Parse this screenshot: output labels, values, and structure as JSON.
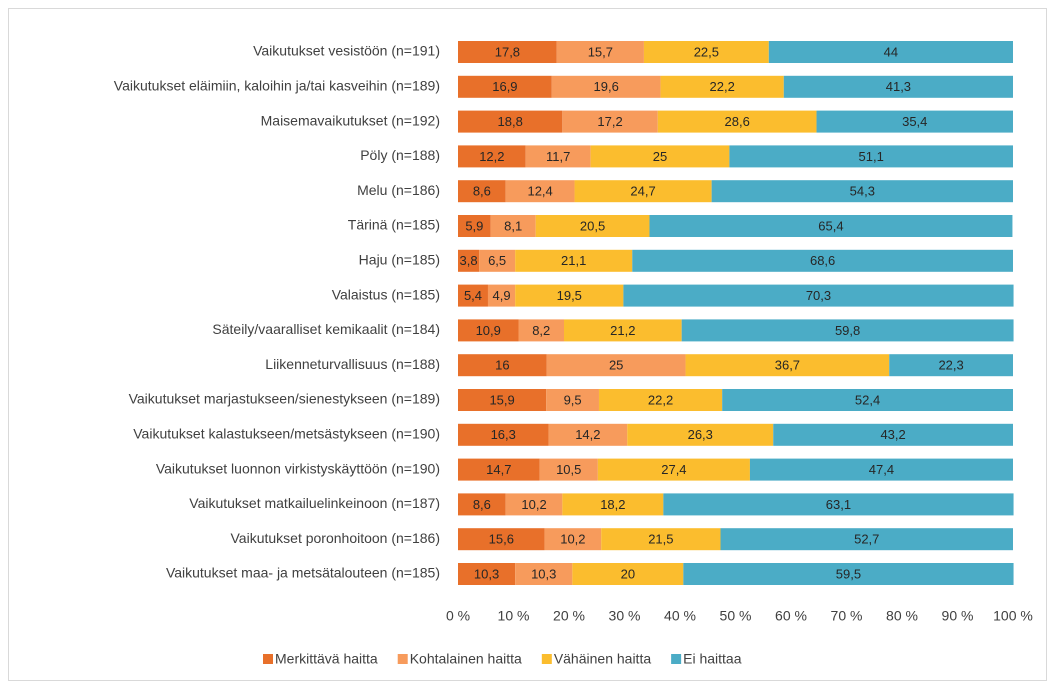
{
  "chart_data": {
    "type": "stacked-barh",
    "categories": [
      "Vaikutukset vesistöön (n=191)",
      "Vaikutukset eläimiin, kaloihin ja/tai kasveihin (n=189)",
      "Maisemavaikutukset (n=192)",
      "Pöly (n=188)",
      "Melu (n=186)",
      "Tärinä (n=185)",
      "Haju (n=185)",
      "Valaistus (n=185)",
      "Säteily/vaaralliset kemikaalit (n=184)",
      "Liikenneturvallisuus (n=188)",
      "Vaikutukset marjastukseen/sienestykseen (n=189)",
      "Vaikutukset kalastukseen/metsästykseen (n=190)",
      "Vaikutukset luonnon virkistyskäyttöön (n=190)",
      "Vaikutukset matkailuelinkeinoon (n=187)",
      "Vaikutukset poronhoitoon (n=186)",
      "Vaikutukset maa- ja metsätalouteen (n=185)"
    ],
    "series": [
      {
        "name": "Merkittävä haitta",
        "color": "#e8702a",
        "values": [
          17.8,
          16.9,
          18.8,
          12.2,
          8.6,
          5.9,
          3.8,
          5.4,
          10.9,
          16,
          15.9,
          16.3,
          14.7,
          8.6,
          15.6,
          10.3
        ],
        "value_labels": [
          "17,8",
          "16,9",
          "18,8",
          "12,2",
          "8,6",
          "5,9",
          "3,8",
          "5,4",
          "10,9",
          "16",
          "15,9",
          "16,3",
          "14,7",
          "8,6",
          "15,6",
          "10,3"
        ]
      },
      {
        "name": "Kohtalainen haitta",
        "color": "#f79b5c",
        "values": [
          15.7,
          19.6,
          17.2,
          11.7,
          12.4,
          8.1,
          6.5,
          4.9,
          8.2,
          25,
          9.5,
          14.2,
          10.5,
          10.2,
          10.2,
          10.3
        ],
        "value_labels": [
          "15,7",
          "19,6",
          "17,2",
          "11,7",
          "12,4",
          "8,1",
          "6,5",
          "4,9",
          "8,2",
          "25",
          "9,5",
          "14,2",
          "10,5",
          "10,2",
          "10,2",
          "10,3"
        ]
      },
      {
        "name": "Vähäinen haitta",
        "color": "#fbbd2e",
        "values": [
          22.5,
          22.2,
          28.6,
          25,
          24.7,
          20.5,
          21.1,
          19.5,
          21.2,
          36.7,
          22.2,
          26.3,
          27.4,
          18.2,
          21.5,
          20
        ],
        "value_labels": [
          "22,5",
          "22,2",
          "28,6",
          "25",
          "24,7",
          "20,5",
          "21,1",
          "19,5",
          "21,2",
          "36,7",
          "22,2",
          "26,3",
          "27,4",
          "18,2",
          "21,5",
          "20"
        ]
      },
      {
        "name": "Ei haittaa",
        "color": "#4bacc6",
        "values": [
          44,
          41.3,
          35.4,
          51.1,
          54.3,
          65.4,
          68.6,
          70.3,
          59.8,
          22.3,
          52.4,
          43.2,
          47.4,
          63.1,
          52.7,
          59.5
        ],
        "value_labels": [
          "44",
          "41,3",
          "35,4",
          "51,1",
          "54,3",
          "65,4",
          "68,6",
          "70,3",
          "59,8",
          "22,3",
          "52,4",
          "43,2",
          "47,4",
          "63,1",
          "52,7",
          "59,5"
        ]
      }
    ],
    "xlim": [
      0,
      100
    ],
    "xticks": [
      {
        "value": 0,
        "label": "0 %"
      },
      {
        "value": 10,
        "label": "10 %"
      },
      {
        "value": 20,
        "label": "20 %"
      },
      {
        "value": 30,
        "label": "30 %"
      },
      {
        "value": 40,
        "label": "40 %"
      },
      {
        "value": 50,
        "label": "50 %"
      },
      {
        "value": 60,
        "label": "60 %"
      },
      {
        "value": 70,
        "label": "70 %"
      },
      {
        "value": 80,
        "label": "80 %"
      },
      {
        "value": 90,
        "label": "90 %"
      },
      {
        "value": 100,
        "label": "100 %"
      }
    ],
    "legend": "bottom"
  }
}
